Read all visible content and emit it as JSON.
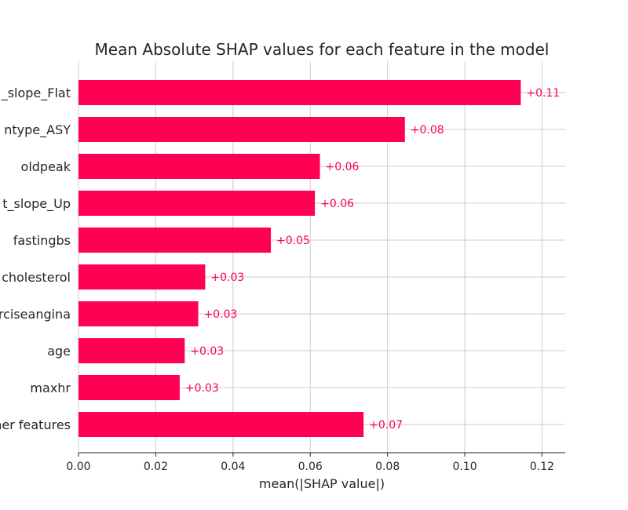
{
  "chart_data": {
    "type": "bar",
    "orientation": "horizontal",
    "title": "Mean Absolute SHAP values for each feature in the model",
    "xlabel": "mean(|SHAP value|)",
    "ylabel": "",
    "xlim": [
      0,
      0.126
    ],
    "x_ticks": [
      0.0,
      0.02,
      0.04,
      0.06,
      0.08,
      0.1,
      0.12
    ],
    "x_tick_labels": [
      "0.00",
      "0.02",
      "0.04",
      "0.06",
      "0.08",
      "0.10",
      "0.12"
    ],
    "grid": true,
    "bar_color": "#ff0052",
    "categories": [
      "_slope_Flat",
      "ntype_ASY",
      "oldpeak",
      "t_slope_Up",
      "fastingbs",
      "cholesterol",
      "rciseangina",
      "age",
      "maxhr",
      "her features"
    ],
    "values": [
      0.1145,
      0.0845,
      0.0625,
      0.0612,
      0.0498,
      0.0328,
      0.031,
      0.0275,
      0.0262,
      0.0738
    ],
    "value_labels": [
      "+0.11",
      "+0.08",
      "+0.06",
      "+0.06",
      "+0.05",
      "+0.03",
      "+0.03",
      "+0.03",
      "+0.03",
      "+0.07"
    ]
  }
}
